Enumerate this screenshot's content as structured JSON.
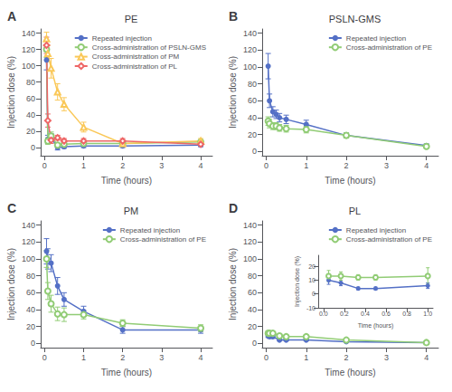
{
  "chart_data": [
    {
      "type": "line",
      "title": "PE",
      "annotations": [
        "A"
      ],
      "xlabel": "Time (hours)",
      "ylabel": "Injection dose (%)",
      "x": [
        0.05,
        0.083,
        0.167,
        0.333,
        0.5,
        1.0,
        2.0,
        4.0
      ],
      "series": [
        {
          "name": "Repeated injection",
          "marker": "circle",
          "values": [
            107,
            10,
            12,
            0,
            1,
            2,
            2,
            3
          ],
          "yerr": [
            12,
            5,
            5,
            3,
            2,
            2,
            2,
            2
          ]
        },
        {
          "name": "Cross-administration of PSLN-GMS",
          "marker": "open_circle",
          "values": [
            120,
            8,
            14,
            3,
            4,
            5,
            5,
            7
          ],
          "yerr": [
            10,
            4,
            5,
            2,
            2,
            2,
            2,
            2
          ]
        },
        {
          "name": "Cross-administration of PM",
          "marker": "open_triangle",
          "values": [
            133,
            115,
            97,
            68,
            53,
            25,
            5,
            8
          ],
          "yerr": [
            8,
            10,
            12,
            10,
            8,
            6,
            3,
            3
          ]
        },
        {
          "name": "Cross-administration of PL",
          "marker": "open_diamond",
          "values": [
            125,
            33,
            9,
            12,
            8,
            8,
            8,
            4
          ],
          "yerr": [
            10,
            8,
            4,
            3,
            3,
            3,
            3,
            2
          ]
        }
      ],
      "xlim": [
        -0.1,
        4.3
      ],
      "ylim": [
        -10,
        145
      ],
      "xticks": [
        0,
        1,
        2,
        3,
        4
      ],
      "yticks": [
        0,
        20,
        40,
        60,
        80,
        100,
        120,
        140
      ],
      "grid": false,
      "legend": "upper right"
    },
    {
      "type": "line",
      "title": "PSLN-GMS",
      "annotations": [
        "B"
      ],
      "xlabel": "Time (hours)",
      "ylabel": "Injection dose (%)",
      "x": [
        0.05,
        0.083,
        0.167,
        0.25,
        0.333,
        0.5,
        1.0,
        2.0,
        4.0
      ],
      "series": [
        {
          "name": "Repeated injection",
          "marker": "circle",
          "values": [
            101,
            60,
            47,
            44,
            40,
            38,
            32,
            19,
            7
          ],
          "yerr": [
            15,
            8,
            6,
            5,
            5,
            5,
            5,
            3,
            2
          ]
        },
        {
          "name": "Cross-administration of PE",
          "marker": "open_circle",
          "values": [
            36,
            33,
            30,
            30,
            28,
            27,
            26,
            19,
            6
          ],
          "yerr": [
            5,
            5,
            4,
            4,
            4,
            4,
            4,
            3,
            2
          ]
        }
      ],
      "xlim": [
        -0.1,
        4.3
      ],
      "ylim": [
        -5,
        145
      ],
      "xticks": [
        0,
        1,
        2,
        3,
        4
      ],
      "yticks": [
        0,
        20,
        40,
        60,
        80,
        100,
        120,
        140
      ],
      "grid": false,
      "legend": "upper right"
    },
    {
      "type": "line",
      "title": "PM",
      "annotations": [
        "C"
      ],
      "xlabel": "Time (hours)",
      "ylabel": "Injection dose (%)",
      "x": [
        0.05,
        0.083,
        0.167,
        0.333,
        0.5,
        1.0,
        2.0,
        4.0
      ],
      "series": [
        {
          "name": "Repeated injection",
          "marker": "circle",
          "values": [
            109,
            100,
            95,
            68,
            52,
            38,
            16,
            16
          ],
          "yerr": [
            15,
            12,
            10,
            10,
            8,
            6,
            4,
            4
          ]
        },
        {
          "name": "Cross-administration of PE",
          "marker": "open_circle",
          "values": [
            100,
            62,
            47,
            35,
            34,
            34,
            24,
            18
          ],
          "yerr": [
            10,
            10,
            10,
            8,
            8,
            5,
            4,
            4
          ]
        }
      ],
      "xlim": [
        -0.1,
        4.3
      ],
      "ylim": [
        -5,
        145
      ],
      "xticks": [
        0,
        1,
        2,
        3,
        4
      ],
      "yticks": [
        0,
        20,
        40,
        60,
        80,
        100,
        120,
        140
      ],
      "grid": false,
      "legend": "upper right"
    },
    {
      "type": "line",
      "title": "PL",
      "annotations": [
        "D"
      ],
      "xlabel": "Time (hours)",
      "ylabel": "Injection dose (%)",
      "x": [
        0.05,
        0.083,
        0.167,
        0.333,
        0.5,
        1.0,
        2.0,
        4.0
      ],
      "series": [
        {
          "name": "Repeated injection",
          "marker": "circle",
          "values": [
            9,
            8,
            8,
            4,
            4,
            4,
            2,
            1
          ],
          "yerr": [
            2,
            2,
            2,
            1,
            1,
            1,
            1,
            1
          ]
        },
        {
          "name": "Cross-administration of PE",
          "marker": "open_circle",
          "values": [
            12,
            12,
            12,
            9,
            8,
            8,
            4,
            1
          ],
          "yerr": [
            3,
            3,
            2,
            2,
            2,
            2,
            1,
            1
          ]
        }
      ],
      "xlim": [
        -0.1,
        4.3
      ],
      "ylim": [
        -5,
        145
      ],
      "xticks": [
        0,
        1,
        2,
        3,
        4
      ],
      "yticks": [
        0,
        20,
        40,
        60,
        80,
        100,
        120,
        140
      ],
      "grid": false,
      "legend": "upper right"
    },
    {
      "type": "line",
      "xlabel": "Time (hours)",
      "ylabel": "Injection dose (%)",
      "x": [
        0.05,
        0.167,
        0.333,
        0.5,
        1.0
      ],
      "series": [
        {
          "marker": "circle",
          "values": [
            10,
            8,
            4,
            4,
            6
          ],
          "yerr": [
            3,
            2,
            1,
            1,
            2
          ]
        },
        {
          "marker": "open_circle",
          "values": [
            13,
            13,
            12,
            12,
            13
          ],
          "yerr": [
            4,
            3,
            2,
            2,
            6
          ]
        }
      ],
      "xlim": [
        -0.05,
        1.05
      ],
      "ylim": [
        -10,
        28
      ],
      "xticks": [
        {
          "value": 0,
          "label": "0.0"
        },
        0.2,
        0.4,
        0.6,
        0.8,
        {
          "value": 1,
          "label": "1.0"
        }
      ],
      "yticks": [
        -10,
        0,
        10,
        20
      ],
      "grid": false
    }
  ]
}
